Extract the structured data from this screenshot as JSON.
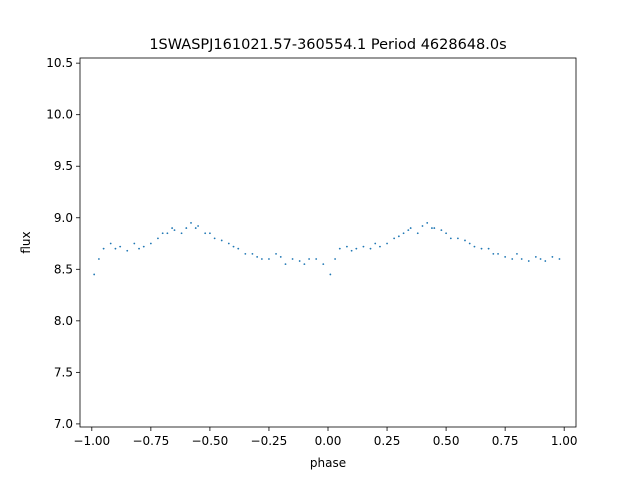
{
  "chart_data": {
    "type": "scatter",
    "title": "1SWASPJ161021.57-360554.1 Period 4628648.0s",
    "xlabel": "phase",
    "ylabel": "flux",
    "xlim": [
      -1.05,
      1.05
    ],
    "ylim": [
      6.97,
      10.55
    ],
    "xticks": [
      -1.0,
      -0.75,
      -0.5,
      -0.25,
      0.0,
      0.25,
      0.5,
      0.75,
      1.0
    ],
    "xtick_labels": [
      "−1.00",
      "−0.75",
      "−0.50",
      "−0.25",
      "0.00",
      "0.25",
      "0.50",
      "0.75",
      "1.00"
    ],
    "yticks": [
      7.0,
      7.5,
      8.0,
      8.5,
      9.0,
      9.5,
      10.0,
      10.5
    ],
    "ytick_labels": [
      "7.0",
      "7.5",
      "8.0",
      "8.5",
      "9.0",
      "9.5",
      "10.0",
      "10.5"
    ],
    "grid": false,
    "legend": "none",
    "marker_color": "#1f77b4",
    "series": [
      {
        "x": [
          -0.99,
          -0.97,
          -0.95,
          -0.92,
          -0.9,
          -0.88,
          -0.85,
          -0.82,
          -0.8,
          -0.78,
          -0.75,
          -0.72,
          -0.7,
          -0.68,
          -0.66,
          -0.65,
          -0.62,
          -0.6,
          -0.58,
          -0.56,
          -0.55,
          -0.52,
          -0.5,
          -0.48,
          -0.45,
          -0.42,
          -0.4,
          -0.38,
          -0.35,
          -0.32,
          -0.3,
          -0.28,
          -0.25,
          -0.22,
          -0.2,
          -0.18,
          -0.15,
          -0.12,
          -0.1,
          -0.08,
          -0.05,
          -0.02,
          0.01,
          0.03,
          0.05,
          0.08,
          0.1,
          0.12,
          0.15,
          0.18,
          0.2,
          0.22,
          0.25,
          0.28,
          0.3,
          0.32,
          0.34,
          0.35,
          0.38,
          0.4,
          0.42,
          0.44,
          0.45,
          0.48,
          0.5,
          0.52,
          0.55,
          0.58,
          0.6,
          0.62,
          0.65,
          0.68,
          0.7,
          0.72,
          0.75,
          0.78,
          0.8,
          0.82,
          0.85,
          0.88,
          0.9,
          0.92,
          0.95,
          0.98
        ],
        "y": [
          8.45,
          8.6,
          8.7,
          8.75,
          8.7,
          8.72,
          8.68,
          8.75,
          8.7,
          8.72,
          8.75,
          8.8,
          8.85,
          8.85,
          8.9,
          8.88,
          8.85,
          8.9,
          8.95,
          8.9,
          8.92,
          8.85,
          8.85,
          8.8,
          8.78,
          8.75,
          8.72,
          8.7,
          8.65,
          8.65,
          8.62,
          8.6,
          8.6,
          8.65,
          8.62,
          8.55,
          8.6,
          8.58,
          8.55,
          8.6,
          8.6,
          8.55,
          8.45,
          8.6,
          8.7,
          8.72,
          8.68,
          8.7,
          8.72,
          8.7,
          8.75,
          8.72,
          8.75,
          8.8,
          8.82,
          8.85,
          8.88,
          8.9,
          8.85,
          8.92,
          8.95,
          8.9,
          8.9,
          8.88,
          8.85,
          8.8,
          8.8,
          8.78,
          8.75,
          8.72,
          8.7,
          8.7,
          8.65,
          8.65,
          8.62,
          8.6,
          8.65,
          8.6,
          8.58,
          8.62,
          8.6,
          8.58,
          8.62,
          8.6
        ]
      }
    ]
  }
}
